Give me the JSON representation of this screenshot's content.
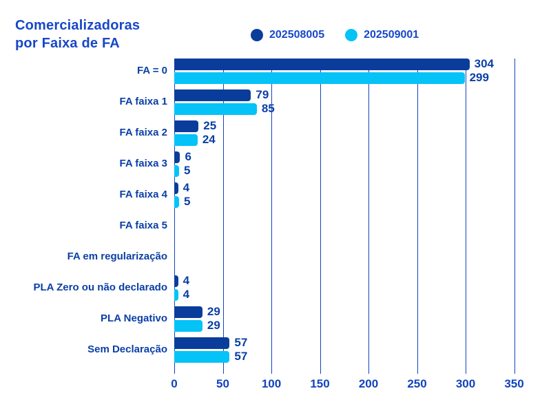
{
  "title": {
    "line1": "Comercializadoras",
    "line2": "por Faixa de FA"
  },
  "legend": {
    "items": [
      {
        "label": "202508005",
        "color": "#0A3D9B"
      },
      {
        "label": "202509001",
        "color": "#05C3F7"
      }
    ]
  },
  "colors": {
    "background": "#FFFFFF",
    "title_text": "#1747C9",
    "category_text": "#0A3FA6",
    "value_text": "#0A3FA6",
    "axis_text": "#1243BD",
    "gridline": "#1243BD",
    "series1": "#0A3D9B",
    "series2": "#05C3F7"
  },
  "chart_data": {
    "type": "bar",
    "orientation": "horizontal",
    "title": "Comercializadoras por Faixa de FA",
    "categories": [
      "FA = 0",
      "FA faixa 1",
      "FA faixa 2",
      "FA faixa 3",
      "FA faixa 4",
      "FA faixa 5",
      "FA em regularização",
      "PLA Zero ou não declarado",
      "PLA Negativo",
      "Sem Declaração"
    ],
    "series": [
      {
        "name": "202508005",
        "color": "#0A3D9B",
        "values": [
          304,
          79,
          25,
          6,
          4,
          0,
          0,
          4,
          29,
          57
        ]
      },
      {
        "name": "202509001",
        "color": "#05C3F7",
        "values": [
          299,
          85,
          24,
          5,
          5,
          0,
          0,
          4,
          29,
          57
        ]
      }
    ],
    "xlabel": "",
    "ylabel": "",
    "xlim": [
      0,
      350
    ],
    "xticks": [
      0,
      50,
      100,
      150,
      200,
      250,
      300,
      350
    ],
    "grid": true,
    "value_labels": true,
    "legend_position": "top"
  }
}
